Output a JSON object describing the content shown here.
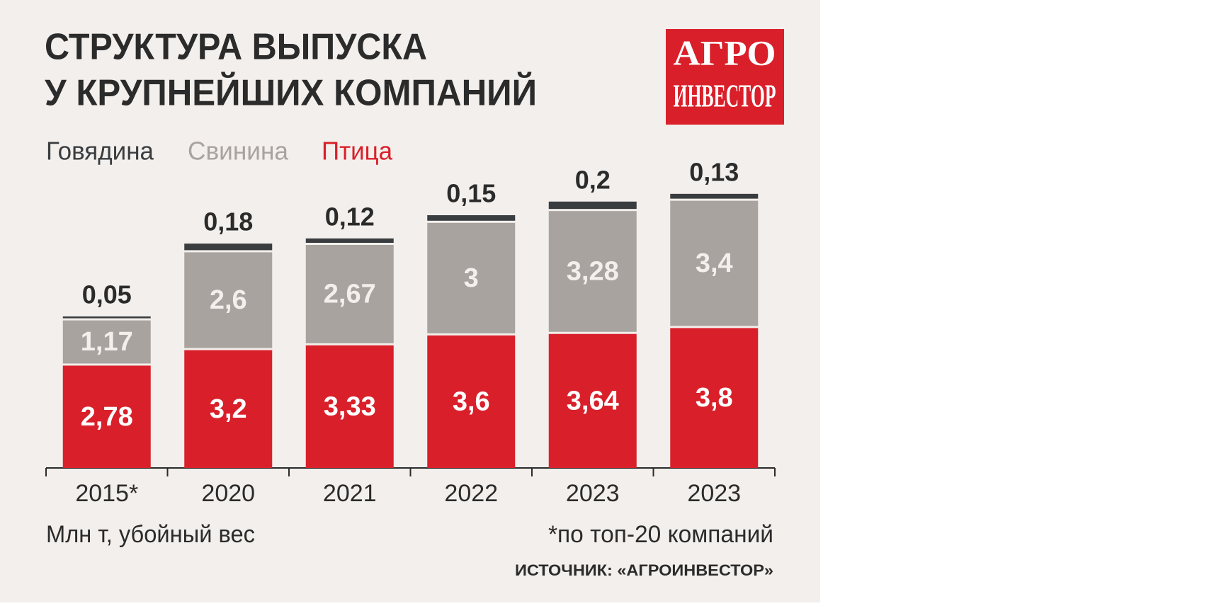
{
  "chart_data": {
    "type": "stacked_bar",
    "title": [
      "СТРУКТУРА ВЫПУСКА",
      "У КРУПНЕЙШИХ КОМПАНИЙ"
    ],
    "logo": [
      "АГРО",
      "ИНВЕСТОР"
    ],
    "categories": [
      "2015*",
      "2020",
      "2021",
      "2022",
      "2023",
      "2023"
    ],
    "series": [
      {
        "name": "Птица",
        "color": "#d9202a",
        "values": [
          2.78,
          3.2,
          3.33,
          3.6,
          3.64,
          3.8
        ],
        "value_labels": [
          "2,78",
          "3,2",
          "3,33",
          "3,6",
          "3,64",
          "3,8"
        ]
      },
      {
        "name": "Свинина",
        "color": "#a8a39e",
        "values": [
          1.17,
          2.6,
          2.67,
          3,
          3.28,
          3.4
        ],
        "value_labels": [
          "1,17",
          "2,6",
          "2,67",
          "3",
          "3,28",
          "3,4"
        ]
      },
      {
        "name": "Говядина",
        "color": "#3a3d40",
        "values": [
          0.05,
          0.18,
          0.12,
          0.15,
          0.2,
          0.13
        ],
        "value_labels": [
          "0,05",
          "0,18",
          "0,12",
          "0,15",
          "0,2",
          "0,13"
        ]
      }
    ],
    "unit_note": "Млн т, убойный вес",
    "footnote": "*по топ-20 компаний",
    "source": "ИСТОЧНИК: «АГРОИНВЕСТОР»"
  }
}
